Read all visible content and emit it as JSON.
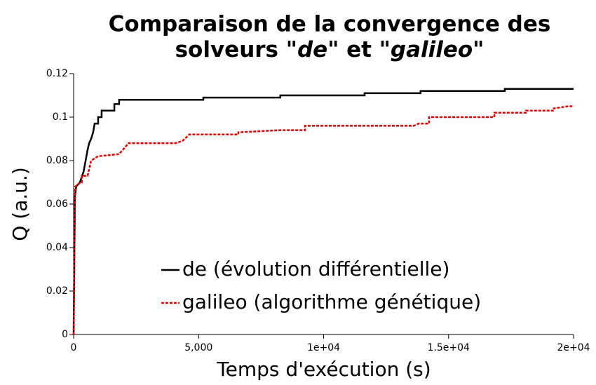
{
  "chart_data": {
    "type": "line",
    "drawstyle": "steps",
    "title": [
      "Comparaison de la convergence des",
      "solveurs \"",
      "de",
      "\" et \"",
      "galileo",
      "\""
    ],
    "xlabel": "Temps d'exécution (s)",
    "ylabel": "Q (a.u.)",
    "xlim": [
      0,
      20000
    ],
    "ylim": [
      0,
      0.12
    ],
    "xticks": [
      0,
      {
        "value": 5000,
        "label": "5,000"
      },
      {
        "value": 10000,
        "label": "1e+04"
      },
      {
        "value": 15000,
        "label": "1.5e+04"
      },
      {
        "value": 20000,
        "label": "2e+04"
      }
    ],
    "yticks": [
      0,
      0.02,
      0.04,
      0.06,
      0.08,
      0.1,
      0.12
    ],
    "legend": "lower right",
    "series": [
      {
        "name": "de (évolution différentielle)",
        "color": "#000000",
        "dash": "solid",
        "x": [
          0,
          50,
          100,
          250,
          400,
          480,
          560,
          620,
          700,
          780,
          840,
          980,
          980,
          1120,
          1120,
          1630,
          1630,
          1820,
          1820,
          5190,
          5190,
          8270,
          8270,
          11640,
          11640,
          13880,
          13880,
          17250,
          17250,
          20000
        ],
        "values": [
          0,
          0.063,
          0.068,
          0.07,
          0.075,
          0.08,
          0.085,
          0.088,
          0.09,
          0.093,
          0.097,
          0.097,
          0.1,
          0.1,
          0.103,
          0.103,
          0.106,
          0.106,
          0.108,
          0.108,
          0.109,
          0.109,
          0.11,
          0.11,
          0.111,
          0.111,
          0.112,
          0.112,
          0.113,
          0.113
        ]
      },
      {
        "name": "galileo (algorithme génétique)",
        "color": "#e00000",
        "dash": "dashed",
        "x": [
          0,
          60,
          280,
          330,
          330,
          560,
          700,
          980,
          1820,
          2050,
          2190,
          4070,
          4350,
          4630,
          6590,
          6590,
          8270,
          9260,
          9260,
          13600,
          13800,
          14220,
          14220,
          16830,
          16830,
          18090,
          18090,
          19210,
          19210,
          19800,
          20000
        ],
        "values": [
          0,
          0.068,
          0.07,
          0.07,
          0.073,
          0.073,
          0.08,
          0.082,
          0.083,
          0.086,
          0.088,
          0.088,
          0.089,
          0.092,
          0.092,
          0.093,
          0.094,
          0.094,
          0.096,
          0.096,
          0.097,
          0.097,
          0.1,
          0.1,
          0.102,
          0.102,
          0.103,
          0.103,
          0.104,
          0.105,
          0.105
        ]
      }
    ]
  }
}
